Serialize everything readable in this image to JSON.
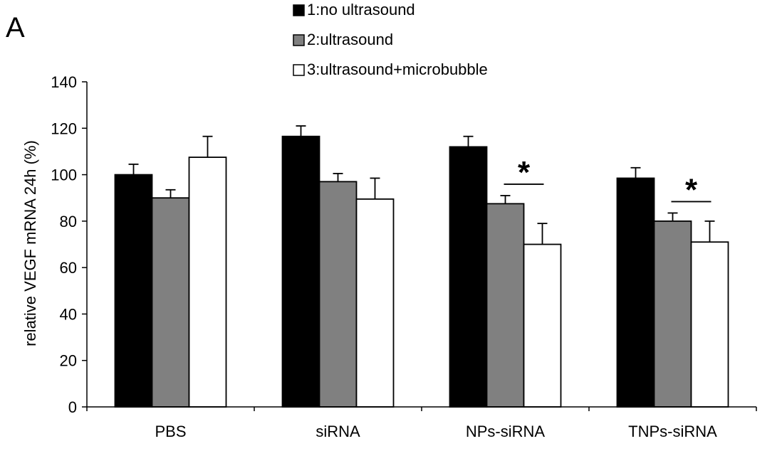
{
  "panel_label": "A",
  "chart_data": {
    "type": "bar",
    "categories": [
      "PBS",
      "siRNA",
      "NPs-siRNA",
      "TNPs-siRNA"
    ],
    "series": [
      {
        "name": "1:no ultrasound",
        "color": "#000000",
        "values": [
          100,
          116.5,
          112,
          98.5
        ],
        "errors": [
          4.5,
          4.5,
          4.5,
          4.5
        ]
      },
      {
        "name": "2:ultrasound",
        "color": "#808080",
        "values": [
          90,
          97,
          87.5,
          80
        ],
        "errors": [
          3.5,
          3.5,
          3.5,
          3.5
        ]
      },
      {
        "name": "3:ultrasound+microbubble",
        "color": "#ffffff",
        "values": [
          107.5,
          89.5,
          70,
          71
        ],
        "errors": [
          9,
          9,
          9,
          9
        ]
      }
    ],
    "xlabel": "",
    "ylabel": "relative VEGF mRNA 24h (%)",
    "ylim": [
      0,
      140
    ],
    "yticks": [
      0,
      20,
      40,
      60,
      80,
      100,
      120,
      140
    ],
    "legend_position": "top",
    "significance": [
      {
        "category": "NPs-siRNA",
        "between": [
          "2:ultrasound",
          "3:ultrasound+microbubble"
        ],
        "label": "*"
      },
      {
        "category": "TNPs-siRNA",
        "between": [
          "2:ultrasound",
          "3:ultrasound+microbubble"
        ],
        "label": "*"
      }
    ]
  }
}
